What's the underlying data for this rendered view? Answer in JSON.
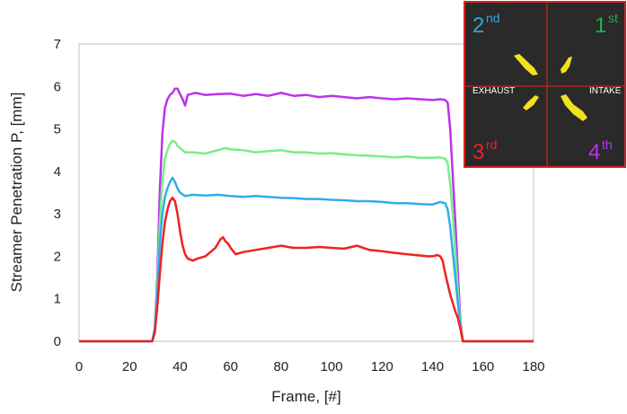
{
  "chart_data": {
    "type": "line",
    "title": "",
    "xlabel": "Frame, [#]",
    "ylabel": "Streamer Penetration P, [mm]",
    "xlim": [
      0,
      180
    ],
    "ylim": [
      0,
      7
    ],
    "xticks": [
      0,
      20,
      40,
      60,
      80,
      100,
      120,
      140,
      160,
      180
    ],
    "yticks": [
      0,
      1,
      2,
      3,
      4,
      5,
      6,
      7
    ],
    "grid": false,
    "series": [
      {
        "color": "#bb33ee",
        "points": [
          [
            0,
            0
          ],
          [
            29,
            0
          ],
          [
            30,
            0.3
          ],
          [
            31,
            1.5
          ],
          [
            32,
            3.6
          ],
          [
            33,
            4.9
          ],
          [
            34,
            5.5
          ],
          [
            35,
            5.7
          ],
          [
            36,
            5.8
          ],
          [
            37,
            5.85
          ],
          [
            38,
            5.95
          ],
          [
            39,
            5.95
          ],
          [
            40,
            5.82
          ],
          [
            41,
            5.7
          ],
          [
            42,
            5.55
          ],
          [
            43,
            5.8
          ],
          [
            46,
            5.85
          ],
          [
            50,
            5.8
          ],
          [
            55,
            5.82
          ],
          [
            60,
            5.83
          ],
          [
            65,
            5.78
          ],
          [
            70,
            5.82
          ],
          [
            75,
            5.78
          ],
          [
            80,
            5.85
          ],
          [
            85,
            5.78
          ],
          [
            90,
            5.8
          ],
          [
            95,
            5.75
          ],
          [
            100,
            5.78
          ],
          [
            105,
            5.75
          ],
          [
            110,
            5.72
          ],
          [
            115,
            5.75
          ],
          [
            120,
            5.72
          ],
          [
            125,
            5.7
          ],
          [
            130,
            5.72
          ],
          [
            135,
            5.7
          ],
          [
            140,
            5.68
          ],
          [
            143,
            5.7
          ],
          [
            145,
            5.68
          ],
          [
            146,
            5.62
          ],
          [
            147,
            5.0
          ],
          [
            148,
            3.9
          ],
          [
            149,
            2.8
          ],
          [
            150,
            1.6
          ],
          [
            151,
            0.5
          ],
          [
            152,
            0
          ],
          [
            180,
            0
          ]
        ]
      },
      {
        "color": "#77ee88",
        "points": [
          [
            0,
            0
          ],
          [
            29,
            0
          ],
          [
            30,
            0.3
          ],
          [
            31,
            1.3
          ],
          [
            32,
            2.8
          ],
          [
            33,
            3.8
          ],
          [
            34,
            4.3
          ],
          [
            35,
            4.5
          ],
          [
            36,
            4.65
          ],
          [
            37,
            4.72
          ],
          [
            38,
            4.7
          ],
          [
            39,
            4.6
          ],
          [
            40,
            4.55
          ],
          [
            42,
            4.45
          ],
          [
            45,
            4.45
          ],
          [
            50,
            4.42
          ],
          [
            55,
            4.5
          ],
          [
            58,
            4.55
          ],
          [
            60,
            4.52
          ],
          [
            65,
            4.5
          ],
          [
            70,
            4.45
          ],
          [
            75,
            4.48
          ],
          [
            80,
            4.5
          ],
          [
            85,
            4.45
          ],
          [
            90,
            4.45
          ],
          [
            95,
            4.42
          ],
          [
            100,
            4.43
          ],
          [
            105,
            4.4
          ],
          [
            110,
            4.38
          ],
          [
            115,
            4.37
          ],
          [
            120,
            4.35
          ],
          [
            125,
            4.33
          ],
          [
            130,
            4.35
          ],
          [
            135,
            4.32
          ],
          [
            140,
            4.32
          ],
          [
            143,
            4.33
          ],
          [
            145,
            4.3
          ],
          [
            146,
            4.2
          ],
          [
            147,
            3.7
          ],
          [
            148,
            3.0
          ],
          [
            149,
            2.1
          ],
          [
            150,
            1.2
          ],
          [
            151,
            0.4
          ],
          [
            152,
            0
          ],
          [
            180,
            0
          ]
        ]
      },
      {
        "color": "#33aaee",
        "points": [
          [
            0,
            0
          ],
          [
            29,
            0
          ],
          [
            30,
            0.3
          ],
          [
            31,
            1.1
          ],
          [
            32,
            2.3
          ],
          [
            33,
            3.0
          ],
          [
            34,
            3.4
          ],
          [
            35,
            3.6
          ],
          [
            36,
            3.75
          ],
          [
            37,
            3.85
          ],
          [
            38,
            3.75
          ],
          [
            39,
            3.6
          ],
          [
            40,
            3.5
          ],
          [
            42,
            3.42
          ],
          [
            45,
            3.45
          ],
          [
            50,
            3.43
          ],
          [
            55,
            3.45
          ],
          [
            60,
            3.42
          ],
          [
            65,
            3.4
          ],
          [
            70,
            3.42
          ],
          [
            75,
            3.4
          ],
          [
            80,
            3.38
          ],
          [
            85,
            3.37
          ],
          [
            90,
            3.35
          ],
          [
            95,
            3.35
          ],
          [
            100,
            3.33
          ],
          [
            105,
            3.32
          ],
          [
            110,
            3.3
          ],
          [
            115,
            3.3
          ],
          [
            120,
            3.28
          ],
          [
            125,
            3.25
          ],
          [
            130,
            3.25
          ],
          [
            135,
            3.23
          ],
          [
            140,
            3.22
          ],
          [
            143,
            3.28
          ],
          [
            145,
            3.25
          ],
          [
            146,
            3.1
          ],
          [
            147,
            2.7
          ],
          [
            148,
            2.1
          ],
          [
            149,
            1.5
          ],
          [
            150,
            0.9
          ],
          [
            151,
            0.3
          ],
          [
            152,
            0
          ],
          [
            180,
            0
          ]
        ]
      },
      {
        "color": "#ee2222",
        "points": [
          [
            0,
            0
          ],
          [
            29,
            0
          ],
          [
            30,
            0.2
          ],
          [
            31,
            0.8
          ],
          [
            32,
            1.6
          ],
          [
            33,
            2.3
          ],
          [
            34,
            2.8
          ],
          [
            35,
            3.1
          ],
          [
            36,
            3.3
          ],
          [
            37,
            3.38
          ],
          [
            38,
            3.3
          ],
          [
            39,
            3.0
          ],
          [
            40,
            2.6
          ],
          [
            41,
            2.25
          ],
          [
            42,
            2.05
          ],
          [
            43,
            1.95
          ],
          [
            45,
            1.9
          ],
          [
            47,
            1.95
          ],
          [
            50,
            2.0
          ],
          [
            52,
            2.1
          ],
          [
            54,
            2.2
          ],
          [
            56,
            2.4
          ],
          [
            57,
            2.45
          ],
          [
            58,
            2.35
          ],
          [
            59,
            2.3
          ],
          [
            60,
            2.2
          ],
          [
            62,
            2.05
          ],
          [
            65,
            2.1
          ],
          [
            70,
            2.15
          ],
          [
            75,
            2.2
          ],
          [
            80,
            2.25
          ],
          [
            85,
            2.2
          ],
          [
            90,
            2.2
          ],
          [
            95,
            2.22
          ],
          [
            100,
            2.2
          ],
          [
            105,
            2.18
          ],
          [
            110,
            2.25
          ],
          [
            115,
            2.15
          ],
          [
            120,
            2.12
          ],
          [
            125,
            2.08
          ],
          [
            130,
            2.05
          ],
          [
            135,
            2.02
          ],
          [
            138,
            2.0
          ],
          [
            140,
            2.0
          ],
          [
            142,
            2.03
          ],
          [
            143,
            2.0
          ],
          [
            144,
            1.9
          ],
          [
            145,
            1.6
          ],
          [
            146,
            1.35
          ],
          [
            147,
            1.1
          ],
          [
            148,
            0.9
          ],
          [
            149,
            0.7
          ],
          [
            150,
            0.55
          ],
          [
            151,
            0.3
          ],
          [
            152,
            0
          ],
          [
            180,
            0
          ]
        ]
      }
    ]
  },
  "inset": {
    "labels": {
      "q2": {
        "num": "2",
        "sup": "nd",
        "color": "#29a8e0"
      },
      "q1": {
        "num": "1",
        "sup": "st",
        "color": "#22b14c"
      },
      "q3": {
        "num": "3",
        "sup": "rd",
        "color": "#ee2222"
      },
      "q4": {
        "num": "4",
        "sup": "th",
        "color": "#bb33ee"
      }
    },
    "exhaust": "EXHAUST",
    "intake": "INTAKE",
    "border_color": "#dd2222",
    "background": "#2a2a2a",
    "streamer_color": "#f2e21c"
  }
}
